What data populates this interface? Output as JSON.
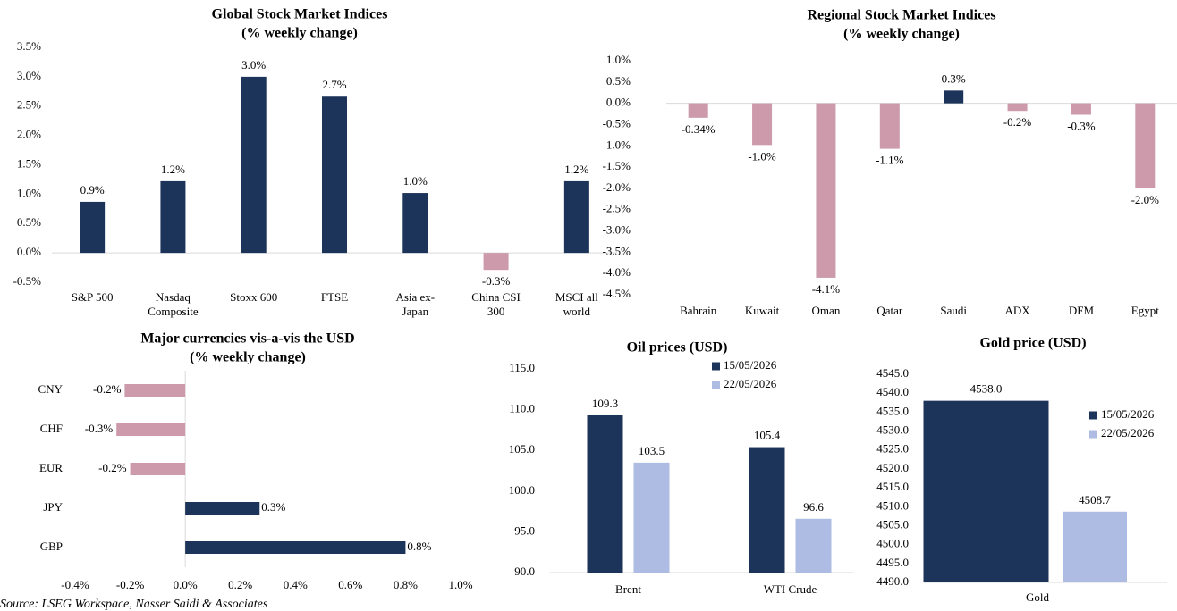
{
  "source": "Source: LSEG Workspace, Nasser Saidi & Associates",
  "chart_data": [
    {
      "type": "bar",
      "title": "Global Stock Market Indices",
      "subtitle": "(% weekly change)",
      "categories": [
        "S&P 500",
        "Nasdaq Composite",
        "Stoxx 600",
        "FTSE",
        "Asia ex-Japan",
        "China CSI 300",
        "MSCI all world"
      ],
      "values": [
        0.87,
        1.22,
        3.0,
        2.66,
        1.02,
        -0.29,
        1.22
      ],
      "value_labels": [
        "0.9%",
        "1.2%",
        "3.0%",
        "2.7%",
        "1.0%",
        "-0.3%",
        "1.2%"
      ],
      "color": "#1c3459",
      "negative_color": "#cc9aab",
      "ylim": [
        -0.5,
        3.5
      ],
      "yticks": [
        {
          "value": -0.5,
          "label": "-0.5%"
        },
        {
          "value": 0,
          "label": "0.0%"
        },
        {
          "value": 0.5,
          "label": "0.5%"
        },
        {
          "value": 1.0,
          "label": "1.0%"
        },
        {
          "value": 1.5,
          "label": "1.5%"
        },
        {
          "value": 2.0,
          "label": "2.0%"
        },
        {
          "value": 2.5,
          "label": "2.5%"
        },
        {
          "value": 3.0,
          "label": "3.0%"
        },
        {
          "value": 3.5,
          "label": "3.5%"
        }
      ]
    },
    {
      "type": "bar",
      "title": "Regional Stock Market Indices",
      "subtitle": "(% weekly change)",
      "categories": [
        "Bahrain",
        "Kuwait",
        "Oman",
        "Qatar",
        "Saudi",
        "ADX",
        "DFM",
        "Egypt"
      ],
      "values": [
        -0.34,
        -0.98,
        -4.1,
        -1.07,
        0.3,
        -0.18,
        -0.27,
        -2.0
      ],
      "value_labels": [
        "-0.34%",
        "-1.0%",
        "-4.1%",
        "-1.1%",
        "0.3%",
        "-0.2%",
        "-0.3%",
        "-2.0%"
      ],
      "color": "#1c3459",
      "negative_color": "#cc9aab",
      "ylim": [
        -4.5,
        1.0
      ],
      "yticks": [
        {
          "value": -4.5,
          "label": "-4.5%"
        },
        {
          "value": -4.0,
          "label": "-4.0%"
        },
        {
          "value": -3.5,
          "label": "-3.5%"
        },
        {
          "value": -3.0,
          "label": "-3.0%"
        },
        {
          "value": -2.5,
          "label": "-2.5%"
        },
        {
          "value": -2.0,
          "label": "-2.0%"
        },
        {
          "value": -1.5,
          "label": "-1.5%"
        },
        {
          "value": -1.0,
          "label": "-1.0%"
        },
        {
          "value": -0.5,
          "label": "-0.5%"
        },
        {
          "value": 0,
          "label": "0.0%"
        },
        {
          "value": 0.5,
          "label": "0.5%"
        },
        {
          "value": 1.0,
          "label": "1.0%"
        }
      ]
    },
    {
      "type": "barh",
      "title": "Major currencies vis-a-vis the USD",
      "subtitle": "(% weekly change)",
      "categories": [
        "CNY",
        "CHF",
        "EUR",
        "JPY",
        "GBP"
      ],
      "values": [
        -0.22,
        -0.25,
        -0.2,
        0.27,
        0.8
      ],
      "value_labels": [
        "-0.2%",
        "-0.3%",
        "-0.2%",
        "0.3%",
        "0.8%"
      ],
      "color": "#1c3459",
      "negative_color": "#cc9aab",
      "xlim": [
        -0.4,
        1.0
      ],
      "xticks": [
        {
          "value": -0.4,
          "label": "-0.4%"
        },
        {
          "value": -0.2,
          "label": "-0.2%"
        },
        {
          "value": 0,
          "label": "0.0%"
        },
        {
          "value": 0.2,
          "label": "0.2%"
        },
        {
          "value": 0.4,
          "label": "0.4%"
        },
        {
          "value": 0.6,
          "label": "0.6%"
        },
        {
          "value": 0.8,
          "label": "0.8%"
        },
        {
          "value": 1.0,
          "label": "1.0%"
        }
      ]
    },
    {
      "type": "grouped_bar",
      "title": "Oil prices (USD)",
      "categories": [
        "Brent",
        "WTI Crude"
      ],
      "series": [
        {
          "name": "15/05/2026",
          "color": "#1c3459",
          "values": [
            109.3,
            105.4
          ]
        },
        {
          "name": "22/05/2026",
          "color": "#aebbe3",
          "values": [
            103.5,
            96.6
          ]
        }
      ],
      "ylim": [
        90,
        115
      ],
      "yticks": [
        {
          "value": 90,
          "label": "90.0"
        },
        {
          "value": 95,
          "label": "95.0"
        },
        {
          "value": 100,
          "label": "100.0"
        },
        {
          "value": 105,
          "label": "105.0"
        },
        {
          "value": 110,
          "label": "110.0"
        },
        {
          "value": 115,
          "label": "115.0"
        }
      ]
    },
    {
      "type": "grouped_bar",
      "title": "Gold price (USD)",
      "categories": [
        "Gold"
      ],
      "series": [
        {
          "name": "15/05/2026",
          "color": "#1c3459",
          "values": [
            4538.0
          ],
          "value_labels": [
            "4538.0"
          ]
        },
        {
          "name": "22/05/2026",
          "color": "#aebbe3",
          "values": [
            4508.7
          ],
          "value_labels": [
            "4508.7"
          ]
        }
      ],
      "ylim": [
        4490,
        4545
      ],
      "yticks": [
        {
          "value": 4490,
          "label": "4490.0"
        },
        {
          "value": 4495,
          "label": "4495.0"
        },
        {
          "value": 4500,
          "label": "4500.0"
        },
        {
          "value": 4505,
          "label": "4505.0"
        },
        {
          "value": 4510,
          "label": "4510.0"
        },
        {
          "value": 4515,
          "label": "4515.0"
        },
        {
          "value": 4520,
          "label": "4520.0"
        },
        {
          "value": 4525,
          "label": "4525.0"
        },
        {
          "value": 4530,
          "label": "4530.0"
        },
        {
          "value": 4535,
          "label": "4535.0"
        },
        {
          "value": 4540,
          "label": "4540.0"
        },
        {
          "value": 4545,
          "label": "4545.0"
        }
      ]
    }
  ]
}
